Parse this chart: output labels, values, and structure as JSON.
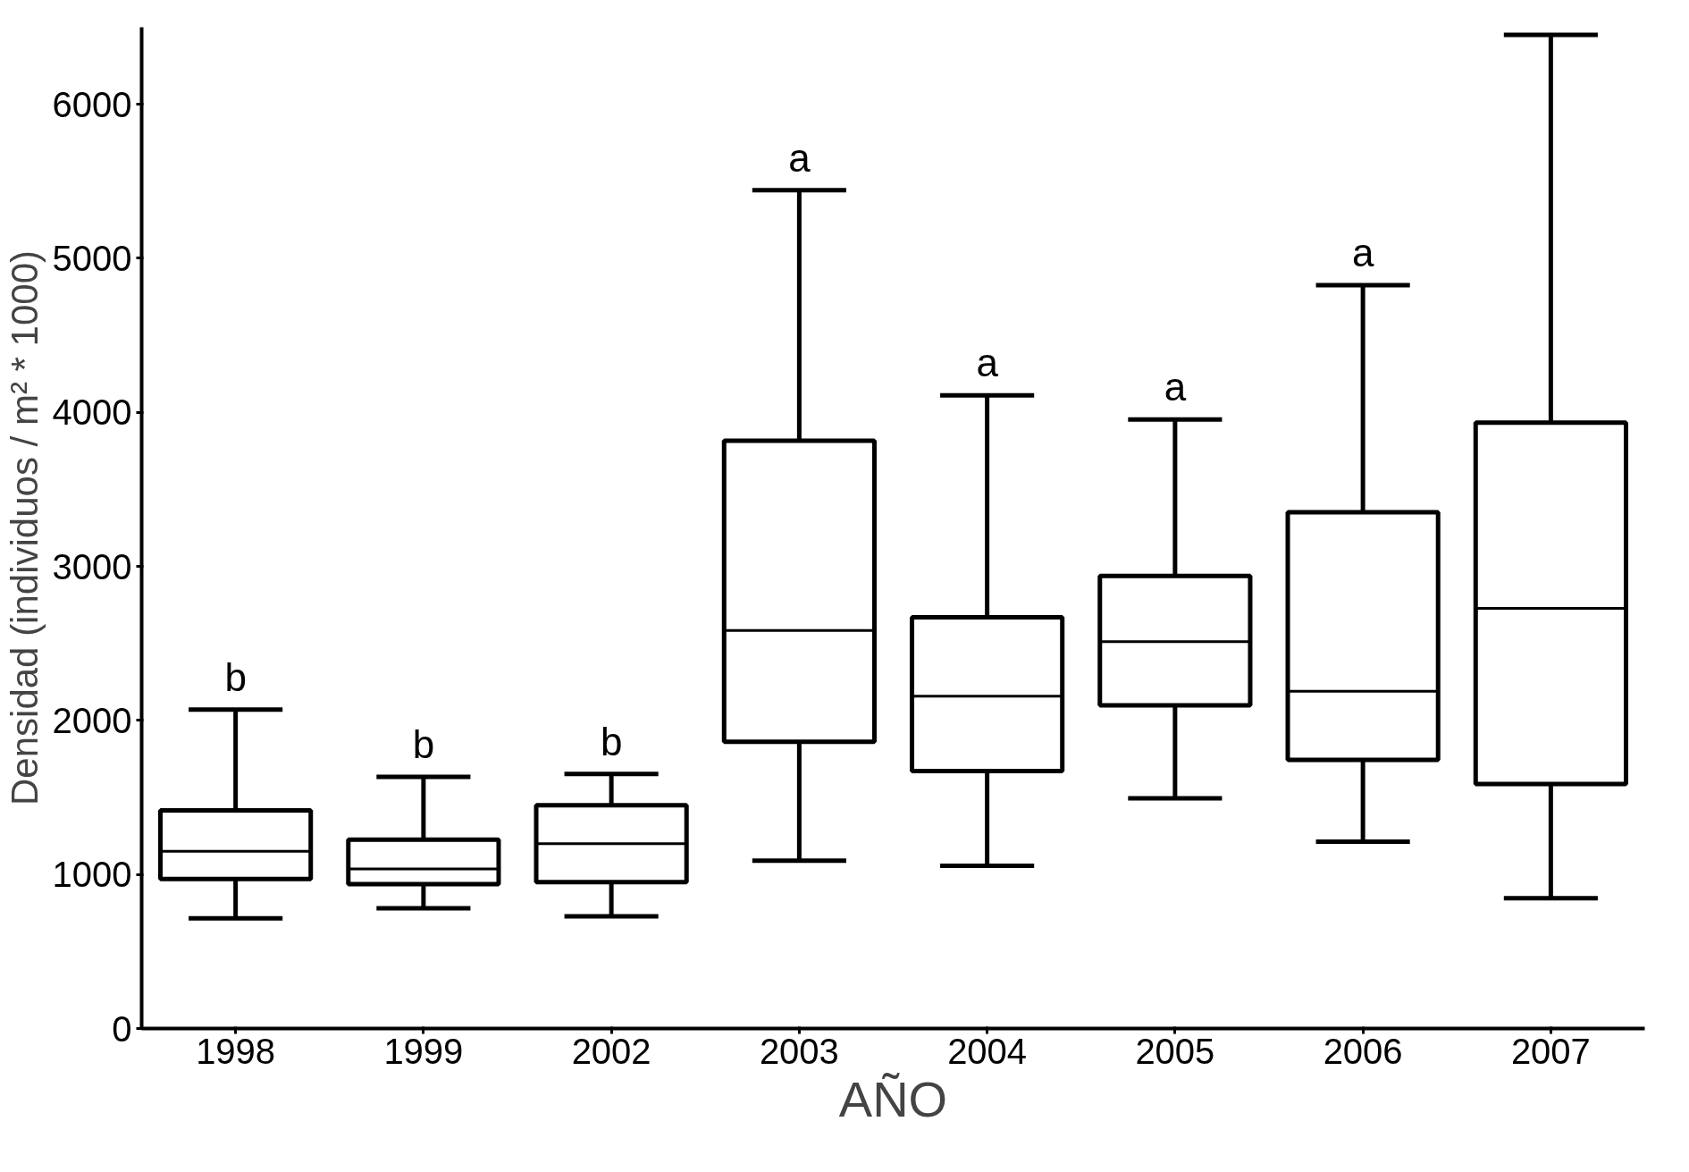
{
  "chart_data": {
    "type": "box",
    "xlabel": "AÑO",
    "ylabel": "Densidad (individuos / m² * 1000)",
    "categories": [
      "1998",
      "1999",
      "2002",
      "2003",
      "2004",
      "2005",
      "2006",
      "2007"
    ],
    "boxes": [
      {
        "low": 715,
        "q1": 970,
        "median": 1150,
        "q3": 1416,
        "high": 2070
      },
      {
        "low": 780,
        "q1": 938,
        "median": 1036,
        "q3": 1226,
        "high": 1633
      },
      {
        "low": 728,
        "q1": 951,
        "median": 1200,
        "q3": 1449,
        "high": 1652
      },
      {
        "low": 1089,
        "q1": 1862,
        "median": 2584,
        "q3": 3816,
        "high": 5443
      },
      {
        "low": 1056,
        "q1": 1672,
        "median": 2157,
        "q3": 2669,
        "high": 4111
      },
      {
        "low": 1495,
        "q1": 2098,
        "median": 2511,
        "q3": 2938,
        "high": 3954
      },
      {
        "low": 1213,
        "q1": 1744,
        "median": 2190,
        "q3": 3351,
        "high": 4826
      },
      {
        "low": 846,
        "q1": 1587,
        "median": 2728,
        "q3": 3934,
        "high": 6450
      }
    ],
    "color": "#000000",
    "ylim": [
      0,
      6500
    ],
    "yticks": [
      0,
      1000,
      2000,
      3000,
      4000,
      5000,
      6000
    ],
    "grid": false,
    "annotations": [
      "b",
      "b",
      "b",
      "a",
      "a",
      "a",
      "a"
    ]
  }
}
